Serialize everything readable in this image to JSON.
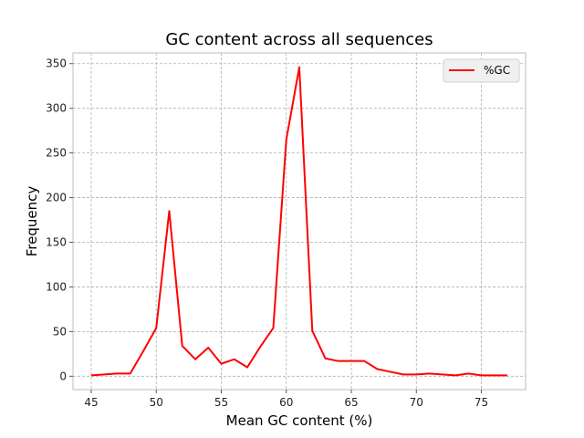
{
  "chart_data": {
    "type": "line",
    "title": "GC content across all sequences",
    "xlabel": "Mean GC content (%)",
    "ylabel": "Frequency",
    "xlim": [
      43.6,
      78.4
    ],
    "ylim": [
      -15,
      362
    ],
    "xticks": [
      45,
      50,
      55,
      60,
      65,
      70,
      75
    ],
    "yticks": [
      0,
      50,
      100,
      150,
      200,
      250,
      300,
      350
    ],
    "grid": true,
    "legend_position": "top-right",
    "series": [
      {
        "name": "%GC",
        "color": "#ff0000",
        "x": [
          45,
          46,
          47,
          48,
          49,
          50,
          51,
          52,
          53,
          54,
          55,
          56,
          57,
          58,
          59,
          60,
          61,
          62,
          63,
          64,
          65,
          66,
          67,
          68,
          69,
          70,
          71,
          72,
          73,
          74,
          75,
          76,
          77
        ],
        "y": [
          1,
          2,
          3,
          3,
          28,
          54,
          185,
          34,
          19,
          32,
          14,
          19,
          10,
          33,
          54,
          265,
          346,
          51,
          20,
          17,
          17,
          17,
          8,
          5,
          2,
          2,
          3,
          2,
          1,
          3,
          1,
          1,
          1
        ]
      }
    ]
  }
}
